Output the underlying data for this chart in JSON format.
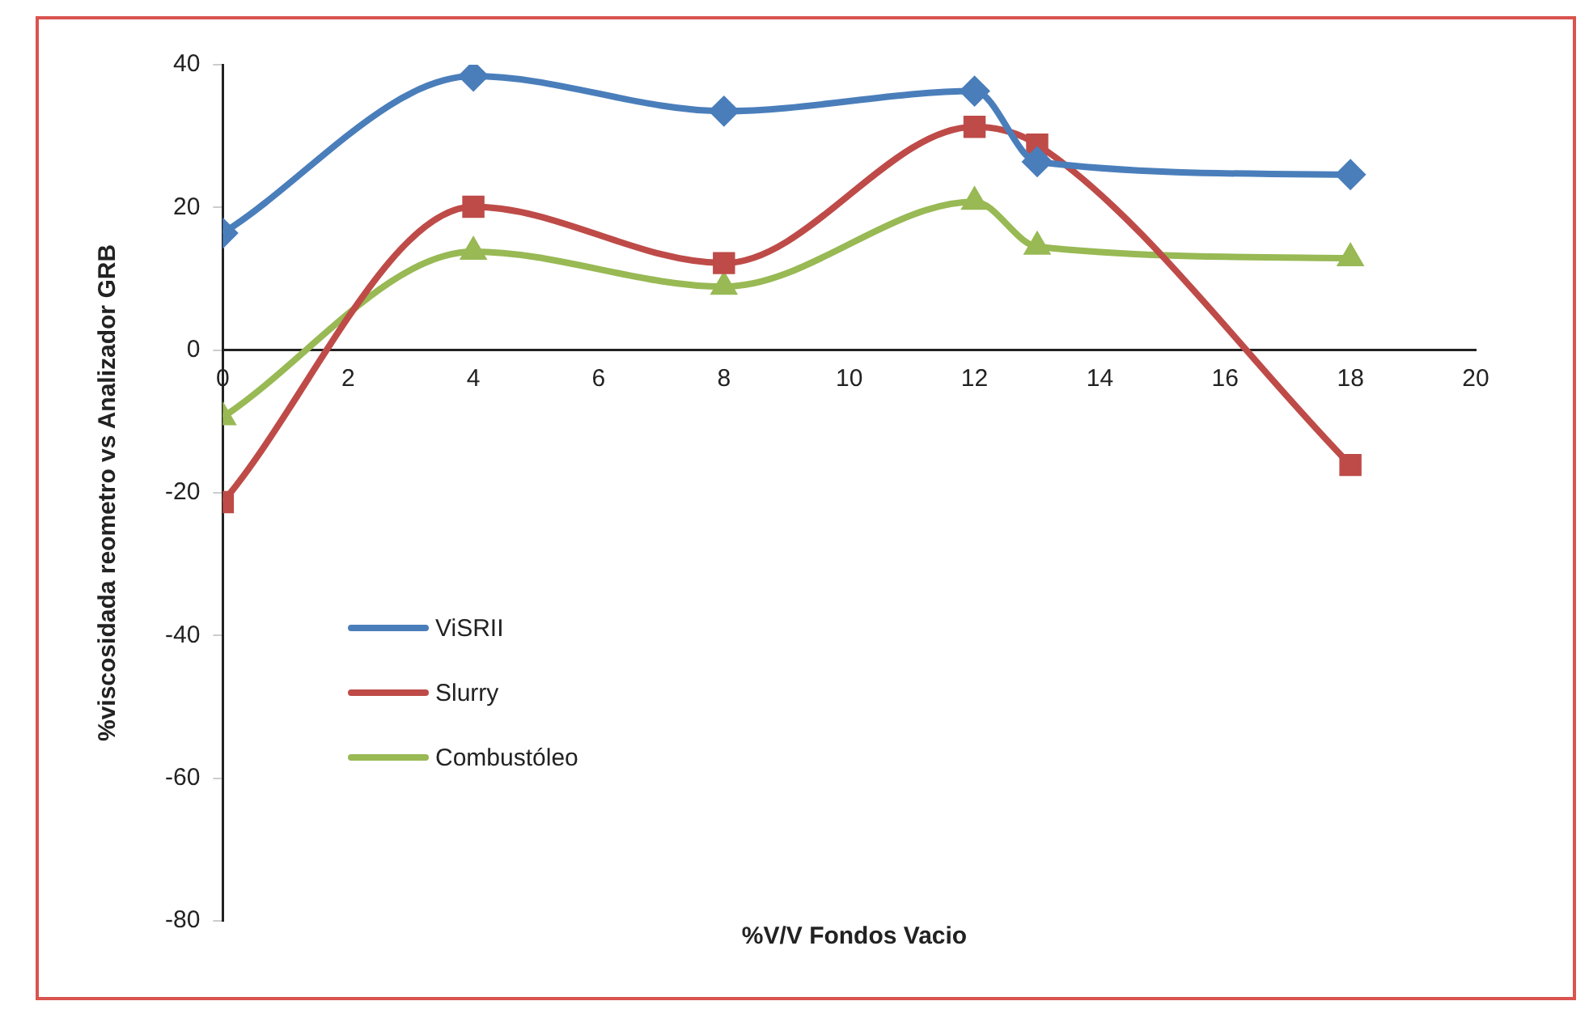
{
  "chart_data": {
    "type": "line",
    "xlabel": "%V/V Fondos Vacio",
    "ylabel": "%viscosidada reometro vs Analizador GRB",
    "x": [
      0,
      4,
      8,
      12,
      13,
      18
    ],
    "series": [
      {
        "name": "ViSRII",
        "color": "#4a7ebb",
        "marker": "diamond",
        "values": [
          16.4,
          38.4,
          33.5,
          36.3,
          26.4,
          24.6
        ]
      },
      {
        "name": "Slurry",
        "color": "#be4b48",
        "marker": "square",
        "values": [
          -21.3,
          20.1,
          12.2,
          31.3,
          28.8,
          -16.1
        ]
      },
      {
        "name": "Combustóleo",
        "color": "#98b954",
        "marker": "triangle",
        "values": [
          -9.4,
          13.8,
          8.9,
          20.8,
          14.5,
          12.9
        ]
      }
    ],
    "xlim": [
      0,
      20
    ],
    "xticks": [
      0,
      2,
      4,
      6,
      8,
      10,
      12,
      14,
      16,
      18,
      20
    ],
    "ylim": [
      -80,
      40
    ],
    "yticks": [
      -80,
      -60,
      -40,
      -20,
      0,
      20,
      40
    ],
    "grid": false,
    "legend": "left",
    "line_style": "solid"
  }
}
